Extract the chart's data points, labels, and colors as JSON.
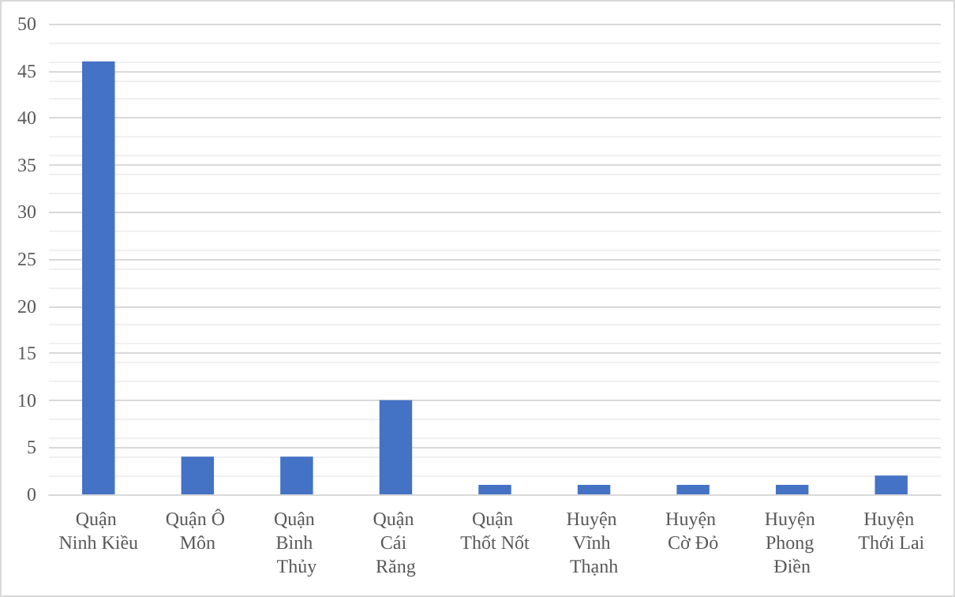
{
  "chart_data": {
    "type": "bar",
    "categories": [
      "Quận Ninh Kiều",
      "Quận Ô Môn",
      "Quận Bình Thủy",
      "Quận Cái Răng",
      "Quận Thốt Nốt",
      "Huyện Vĩnh Thạnh",
      "Huyện Cờ Đỏ",
      "Huyện Phong Điền",
      "Huyện Thới Lai"
    ],
    "values": [
      46,
      4,
      4,
      10,
      1,
      1,
      1,
      1,
      2
    ],
    "color": "#4472c4",
    "ylim": [
      0,
      50
    ],
    "yticks": [
      0,
      5,
      10,
      15,
      20,
      25,
      30,
      35,
      40,
      45,
      50
    ],
    "grid": true
  }
}
